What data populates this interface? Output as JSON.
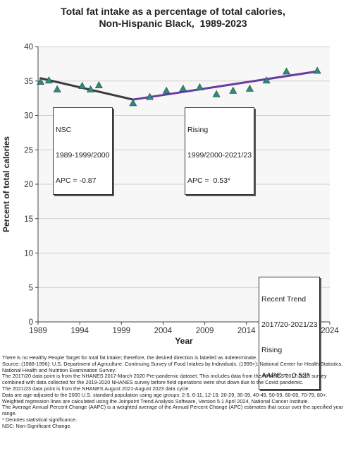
{
  "title_lines": [
    "Total fat intake as a percentage of total calories,",
    "Non-Hispanic Black,  1989-2023"
  ],
  "chart_data": {
    "type": "scatter",
    "title": "Total fat intake as a percentage of total calories, Non-Hispanic Black,  1989-2023",
    "xlabel": "Year",
    "ylabel": "Percent of total calories",
    "xlim": [
      1989,
      2024
    ],
    "ylim": [
      0,
      40
    ],
    "xticks": [
      1989,
      1994,
      1999,
      2004,
      2009,
      2014,
      2019,
      2024
    ],
    "yticks": [
      0,
      5,
      10,
      15,
      20,
      25,
      30,
      35,
      40
    ],
    "grid": true,
    "series": [
      {
        "marker": "triangle",
        "color": "#2e8b7a",
        "points": [
          {
            "x": 1989.3,
            "y": 34.9
          },
          {
            "x": 1990.3,
            "y": 35.1
          },
          {
            "x": 1991.3,
            "y": 33.8
          },
          {
            "x": 1994.3,
            "y": 34.3
          },
          {
            "x": 1995.3,
            "y": 33.8
          },
          {
            "x": 1996.3,
            "y": 34.4
          },
          {
            "x": 2000.4,
            "y": 31.8
          },
          {
            "x": 2002.4,
            "y": 32.7
          },
          {
            "x": 2004.4,
            "y": 33.6
          },
          {
            "x": 2006.4,
            "y": 33.9
          },
          {
            "x": 2008.4,
            "y": 34.1
          },
          {
            "x": 2010.4,
            "y": 33.1
          },
          {
            "x": 2012.4,
            "y": 33.6
          },
          {
            "x": 2014.4,
            "y": 33.9
          },
          {
            "x": 2016.4,
            "y": 35.1
          },
          {
            "x": 2018.8,
            "y": 36.4
          },
          {
            "x": 2022.5,
            "y": 36.5
          }
        ]
      }
    ],
    "trend_lines": [
      {
        "x": [
          1989.3,
          2000.4
        ],
        "y": [
          35.4,
          32.3
        ],
        "color": "#3a3a3a"
      },
      {
        "x": [
          2000.4,
          2022.5
        ],
        "y": [
          32.3,
          36.4
        ],
        "color": "#6a3aa3"
      }
    ],
    "annotations": [
      {
        "lines": [
          "NSC",
          "1989-1999/2000",
          "APC = -0.87"
        ]
      },
      {
        "lines": [
          "Rising",
          "1999/2000-2021/23",
          "APC =  0.53*"
        ]
      },
      {
        "lines": [
          "Recent Trend",
          "2017/20-2021/23",
          "Rising",
          "AAPC =  0.53*"
        ]
      }
    ]
  },
  "notes": [
    "There is no Healthy People Target for total fat intake; therefore, the desired direction is labeled as indeterminate.",
    "Source: (1988-1996): U.S. Department of Agriculture. Continuing Survey of Food Intakes by Individuals. (1999+): National Center for Health Statistics. National Health and Nutrition Examination Survey.",
    "The 2017/20 data point is from the NHANES 2017-March 2020 Pre-pandemic dataset. This includes data from the NHANES 2017-2018 survey combined with data collected for the 2019-2020 NHANES survey before field operations were shut down due to the Covid pandemic.",
    "The 2021/23 data point is from the NHANES August 2021-August 2023 data cycle.",
    "Data are age-adjusted to the 2000 U.S. standard population using age groups: 2-5, 6-11, 12-19, 20-29, 30-39, 40-49, 50-59, 60-69, 70-79, 80+.",
    "Weighted regression lines are calculated using the Joinpoint Trend Analysis Software, Version 5.1 April 2024, National Cancer Institute.",
    "The Average Annual Percent Change (AAPC) is a weighted average of the Annual Percent Change (APC) estimates that occur over the specified year range.",
    "* Denotes statistical significance.",
    "NSC: Non-Significant Change."
  ]
}
